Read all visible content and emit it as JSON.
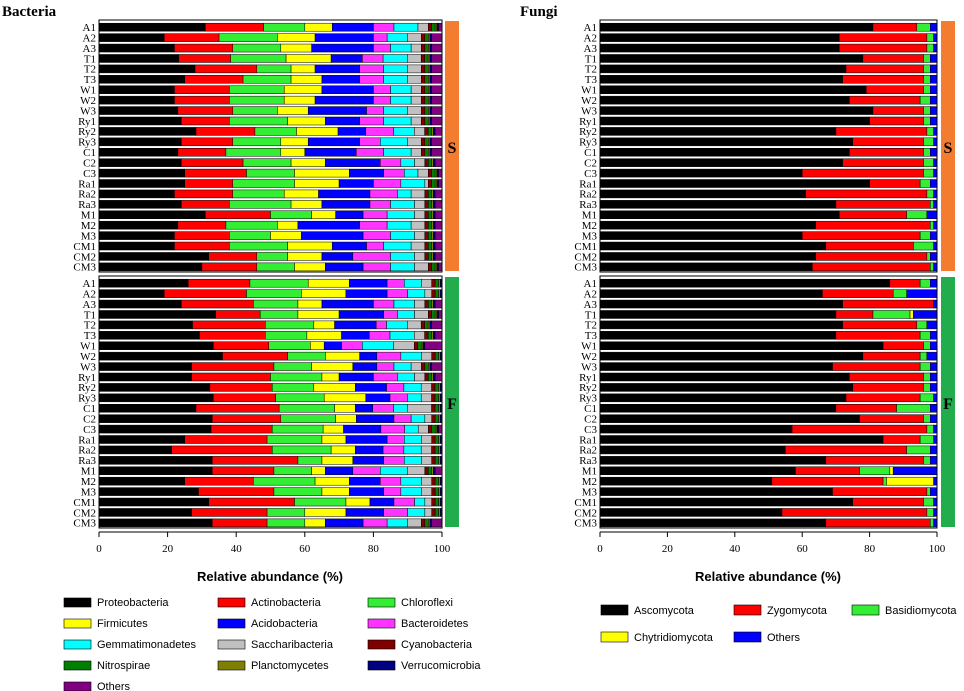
{
  "chart_data": [
    {
      "type": "bar",
      "orientation": "horizontal",
      "stacked": true,
      "title": "Bacteria",
      "xlabel": "Relative abundance (%)",
      "xlim": [
        0,
        100
      ],
      "xticks": [
        "0",
        "20",
        "40",
        "60",
        "80",
        "100"
      ],
      "groups": [
        {
          "label": "S",
          "color": "#f47c30"
        },
        {
          "label": "F",
          "color": "#22ad4d"
        }
      ],
      "categories": [
        "A1",
        "A2",
        "A3",
        "T1",
        "T2",
        "T3",
        "W1",
        "W2",
        "W3",
        "Ry1",
        "Ry2",
        "Ry3",
        "C1",
        "C2",
        "C3",
        "Ra1",
        "Ra2",
        "Ra3",
        "M1",
        "M2",
        "M3",
        "CM1",
        "CM2",
        "CM3"
      ],
      "series": [
        {
          "name": "Proteobacteria",
          "color": "#000000"
        },
        {
          "name": "Actinobacteria",
          "color": "#ff0000"
        },
        {
          "name": "Chloroflexi",
          "color": "#33ee33"
        },
        {
          "name": "Firmicutes",
          "color": "#ffff00"
        },
        {
          "name": "Acidobacteria",
          "color": "#0000ff"
        },
        {
          "name": "Bacteroidetes",
          "color": "#ff33ff"
        },
        {
          "name": "Gemmatimonadetes",
          "color": "#00ffff"
        },
        {
          "name": "Saccharibacteria",
          "color": "#c0c0c0"
        },
        {
          "name": "Cyanobacteria",
          "color": "#800000"
        },
        {
          "name": "Nitrospirae",
          "color": "#008000"
        },
        {
          "name": "Planctomycetes",
          "color": "#808000"
        },
        {
          "name": "Verrucomicrobia",
          "color": "#000080"
        },
        {
          "name": "Others",
          "color": "#800080"
        }
      ],
      "S": [
        [
          31,
          17,
          12,
          8,
          12,
          6,
          7,
          3,
          1,
          1,
          0.5,
          0.5,
          1
        ],
        [
          19,
          16,
          17,
          11,
          17,
          4,
          6,
          4,
          1,
          1,
          0.5,
          0.5,
          3
        ],
        [
          22,
          17,
          14,
          9,
          18,
          5,
          6,
          3,
          1,
          1,
          0.5,
          0.5,
          3
        ],
        [
          23,
          15,
          16,
          13,
          9,
          6,
          7,
          4,
          1,
          1,
          0.5,
          0.5,
          3
        ],
        [
          28,
          18,
          10,
          7,
          13,
          7,
          7,
          4,
          1,
          1,
          0.5,
          0.5,
          3
        ],
        [
          25,
          17,
          14,
          9,
          11,
          7,
          7,
          4,
          1,
          1,
          0.5,
          0.5,
          3
        ],
        [
          22,
          16,
          16,
          11,
          15,
          5,
          6,
          3,
          1,
          1,
          0.5,
          0.5,
          3
        ],
        [
          22,
          16,
          16,
          9,
          17,
          5,
          6,
          3,
          1,
          1,
          0.5,
          0.5,
          3
        ],
        [
          23,
          16,
          13,
          9,
          17,
          5,
          7,
          4,
          1,
          1,
          0.5,
          0.5,
          3
        ],
        [
          24,
          14,
          17,
          11,
          10,
          7,
          8,
          3,
          1,
          1,
          0.5,
          0.5,
          3
        ],
        [
          28,
          17,
          12,
          12,
          8,
          8,
          6,
          3,
          1,
          1,
          0.5,
          0.5,
          2
        ],
        [
          24,
          15,
          14,
          8,
          15,
          6,
          8,
          4,
          1,
          1,
          0.5,
          0.5,
          3
        ],
        [
          23,
          14,
          16,
          7,
          15,
          8,
          8,
          3,
          1,
          1,
          0.5,
          0.5,
          3
        ],
        [
          24,
          18,
          14,
          10,
          16,
          6,
          4,
          3,
          1,
          1,
          0.5,
          0.5,
          2
        ],
        [
          25,
          18,
          14,
          16,
          10,
          6,
          4,
          3,
          1,
          1,
          0.5,
          0.5,
          1
        ],
        [
          25,
          14,
          18,
          13,
          10,
          8,
          7,
          1,
          1,
          1,
          0.5,
          0.5,
          1
        ],
        [
          22,
          17,
          15,
          10,
          15,
          8,
          4,
          4,
          1,
          1,
          0.5,
          0.5,
          2
        ],
        [
          24,
          14,
          18,
          9,
          14,
          6,
          7,
          3,
          1,
          1,
          0.5,
          0.5,
          2
        ],
        [
          31,
          19,
          12,
          7,
          8,
          7,
          8,
          3,
          1,
          1,
          0.5,
          0.5,
          2
        ],
        [
          23,
          14,
          15,
          6,
          18,
          8,
          7,
          4,
          1,
          1,
          0.5,
          0.5,
          2
        ],
        [
          22,
          16,
          12,
          9,
          18,
          8,
          7,
          3,
          1,
          1,
          0.5,
          0.5,
          2
        ],
        [
          22,
          16,
          17,
          13,
          10,
          5,
          8,
          4,
          1,
          1,
          0.5,
          0.5,
          2
        ],
        [
          32,
          14,
          9,
          10,
          9,
          11,
          7,
          3,
          1,
          1,
          0.5,
          0.5,
          2
        ],
        [
          30,
          16,
          11,
          9,
          11,
          8,
          7,
          4,
          1,
          1,
          0.5,
          0.5,
          1
        ]
      ],
      "F": [
        [
          26,
          18,
          17,
          12,
          11,
          5,
          5,
          3,
          1,
          1,
          0.5,
          0.5,
          0
        ],
        [
          19,
          24,
          16,
          13,
          12,
          6,
          5,
          2,
          1,
          1,
          0.5,
          0.5,
          0
        ],
        [
          24,
          21,
          13,
          7,
          15,
          6,
          6,
          3,
          1,
          1,
          0.5,
          0.5,
          2
        ],
        [
          34,
          13,
          11,
          12,
          13,
          4,
          5,
          4,
          1,
          1,
          0.5,
          0.5,
          1
        ],
        [
          27,
          21,
          14,
          6,
          12,
          3,
          6,
          4,
          1,
          1,
          0.5,
          0.5,
          3
        ],
        [
          29,
          19,
          12,
          10,
          8,
          6,
          7,
          3,
          1,
          1,
          0.5,
          0.5,
          2
        ],
        [
          33,
          16,
          12,
          4,
          5,
          6,
          9,
          6,
          1,
          1,
          0.5,
          0.5,
          5
        ],
        [
          36,
          19,
          11,
          10,
          5,
          7,
          6,
          3,
          1,
          1,
          0.5,
          0.5,
          0
        ],
        [
          27,
          24,
          11,
          12,
          7,
          5,
          5,
          3,
          1,
          1,
          0.5,
          0.5,
          3
        ],
        [
          27,
          23,
          15,
          5,
          10,
          7,
          5,
          3,
          1,
          1,
          0.5,
          0.5,
          2
        ],
        [
          32,
          18,
          12,
          12,
          9,
          5,
          5,
          3,
          1,
          1,
          0.5,
          0.5,
          0
        ],
        [
          33,
          18,
          14,
          12,
          7,
          5,
          4,
          3,
          1,
          1,
          0.5,
          0.5,
          0
        ],
        [
          28,
          24,
          16,
          6,
          5,
          6,
          4,
          7,
          1,
          1,
          0.5,
          0.5,
          0
        ],
        [
          33,
          20,
          16,
          6,
          11,
          5,
          4,
          2,
          1,
          1,
          0.5,
          0.5,
          0
        ],
        [
          33,
          18,
          15,
          6,
          11,
          7,
          4,
          3,
          1,
          1,
          0.5,
          0.5,
          1
        ],
        [
          25,
          24,
          16,
          7,
          12,
          5,
          5,
          3,
          1,
          1,
          0.5,
          0.5,
          0
        ],
        [
          21,
          29,
          17,
          7,
          8,
          6,
          5,
          3,
          1,
          1,
          0.5,
          0.5,
          0
        ],
        [
          33,
          25,
          7,
          9,
          9,
          6,
          5,
          3,
          1,
          1,
          0.5,
          0.5,
          0
        ],
        [
          33,
          18,
          11,
          4,
          8,
          8,
          8,
          5,
          1,
          1,
          0.5,
          0.5,
          2
        ],
        [
          25,
          20,
          18,
          10,
          9,
          6,
          6,
          3,
          1,
          1,
          0.5,
          0.5,
          0
        ],
        [
          29,
          22,
          14,
          8,
          10,
          5,
          6,
          3,
          1,
          1,
          0.5,
          0.5,
          0
        ],
        [
          32,
          25,
          15,
          7,
          7,
          6,
          3,
          2,
          1,
          1,
          0.5,
          0.5,
          0
        ],
        [
          27,
          22,
          11,
          12,
          11,
          7,
          5,
          2,
          1,
          1,
          0.5,
          0.5,
          0
        ],
        [
          33,
          16,
          11,
          6,
          11,
          7,
          6,
          4,
          1,
          1,
          0.5,
          0.5,
          3
        ]
      ]
    },
    {
      "type": "bar",
      "orientation": "horizontal",
      "stacked": true,
      "title": "Fungi",
      "xlabel": "Relative abundance (%)",
      "xlim": [
        0,
        100
      ],
      "xticks": [
        "0",
        "20",
        "40",
        "60",
        "80",
        "100"
      ],
      "groups": [
        {
          "label": "S",
          "color": "#f47c30"
        },
        {
          "label": "F",
          "color": "#22ad4d"
        }
      ],
      "categories": [
        "A1",
        "A2",
        "A3",
        "T1",
        "T2",
        "T3",
        "W1",
        "W2",
        "W3",
        "Ry1",
        "Ry2",
        "Ry3",
        "C1",
        "C2",
        "C3",
        "Ra1",
        "Ra2",
        "Ra3",
        "M1",
        "M2",
        "M3",
        "CM1",
        "CM2",
        "CM3"
      ],
      "series": [
        {
          "name": "Ascomycota",
          "color": "#000000"
        },
        {
          "name": "Zygomycota",
          "color": "#ff0000"
        },
        {
          "name": "Basidiomycota",
          "color": "#33ee33"
        },
        {
          "name": "Chytridiomycota",
          "color": "#ffff00"
        },
        {
          "name": "Others",
          "color": "#0000ff"
        }
      ],
      "S": [
        [
          81,
          13,
          4,
          0,
          2
        ],
        [
          71,
          26,
          2,
          0,
          1
        ],
        [
          71,
          26,
          2,
          0,
          1
        ],
        [
          78,
          18,
          2,
          0,
          2
        ],
        [
          73,
          23,
          2,
          0,
          2
        ],
        [
          72,
          24,
          2,
          0,
          2
        ],
        [
          79,
          17,
          2,
          0,
          2
        ],
        [
          74,
          21,
          3,
          0,
          2
        ],
        [
          81,
          15,
          2,
          0,
          2
        ],
        [
          80,
          16,
          2,
          0,
          2
        ],
        [
          70,
          27,
          2,
          0,
          1
        ],
        [
          75,
          21,
          3,
          0,
          1
        ],
        [
          74,
          22,
          2,
          0,
          2
        ],
        [
          72,
          24,
          3,
          0,
          1
        ],
        [
          60,
          36,
          3,
          0,
          1
        ],
        [
          80,
          15,
          3,
          0,
          2
        ],
        [
          61,
          36,
          2,
          0,
          1
        ],
        [
          70,
          28,
          1,
          0,
          1
        ],
        [
          71,
          20,
          6,
          0,
          3
        ],
        [
          64,
          34,
          1,
          0,
          1
        ],
        [
          60,
          35,
          3,
          0,
          2
        ],
        [
          67,
          26,
          6,
          0,
          1
        ],
        [
          64,
          33,
          1,
          0,
          2
        ],
        [
          63,
          35,
          1,
          0,
          1
        ]
      ],
      "F": [
        [
          86,
          9,
          3,
          0,
          2
        ],
        [
          66,
          21,
          4,
          0,
          9
        ],
        [
          72,
          27,
          0,
          0,
          1
        ],
        [
          70,
          11,
          11,
          1,
          7
        ],
        [
          72,
          22,
          3,
          0,
          3
        ],
        [
          70,
          25,
          3,
          0,
          2
        ],
        [
          84,
          12,
          2,
          0,
          2
        ],
        [
          78,
          17,
          2,
          0,
          3
        ],
        [
          69,
          26,
          3,
          0,
          2
        ],
        [
          74,
          22,
          2,
          0,
          2
        ],
        [
          75,
          21,
          2,
          0,
          2
        ],
        [
          73,
          22,
          4,
          0,
          1
        ],
        [
          70,
          18,
          10,
          0,
          2
        ],
        [
          77,
          19,
          2,
          0,
          2
        ],
        [
          57,
          40,
          2,
          0,
          1
        ],
        [
          84,
          11,
          4,
          0,
          1
        ],
        [
          55,
          36,
          7,
          0,
          2
        ],
        [
          67,
          29,
          2,
          0,
          2
        ],
        [
          58,
          19,
          9,
          1,
          13
        ],
        [
          51,
          33,
          1,
          14,
          1
        ],
        [
          69,
          28,
          1,
          0,
          2
        ],
        [
          75,
          21,
          3,
          0,
          1
        ],
        [
          54,
          43,
          2,
          0,
          1
        ],
        [
          67,
          31,
          1,
          0,
          1
        ]
      ]
    }
  ]
}
